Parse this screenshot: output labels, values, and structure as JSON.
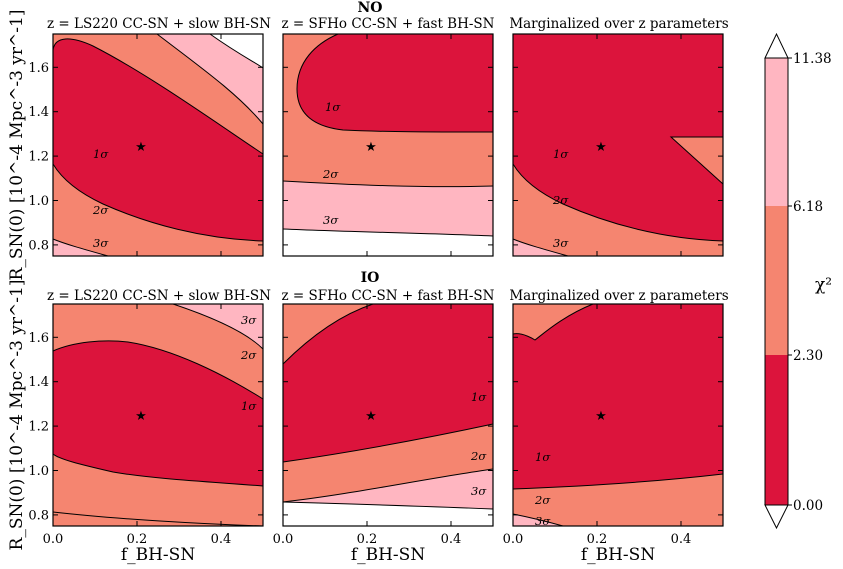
{
  "colors": {
    "one_sigma": "#dc143c",
    "two_sigma": "#f58570",
    "three_sigma": "#ffb6c1",
    "outside": "#ffffff"
  },
  "rows": [
    {
      "title": "NO"
    },
    {
      "title": "IO"
    }
  ],
  "panel_titles": [
    "z = LS220 CC-SN + slow BH-SN",
    "z = SFHo CC-SN + fast BH-SN",
    "Marginalized over z parameters"
  ],
  "x_axis": {
    "label": "f_BH-SN",
    "ticks": [
      "0.0",
      "0.2",
      "0.4"
    ],
    "range": [
      0,
      0.5
    ]
  },
  "y_axis": {
    "label": "R_SN(0) [10^-4 Mpc^-3 yr^-1]",
    "ticks": [
      "0.8",
      "1.0",
      "1.2",
      "1.4",
      "1.6"
    ],
    "range": [
      0.75,
      1.75
    ]
  },
  "colorbar": {
    "label": "χ²",
    "ticks": [
      "0.00",
      "2.30",
      "6.18",
      "11.38"
    ]
  },
  "contour_labels": [
    "1σ",
    "2σ",
    "3σ"
  ],
  "chart_data": {
    "type": "contour",
    "x_label": "f_BH-SN",
    "y_label": "R_SN(0) [10^-4 Mpc^-3 yr^-1]",
    "xlim": [
      0,
      0.5
    ],
    "ylim": [
      0.75,
      1.75
    ],
    "levels": [
      {
        "name": "1σ",
        "chi2_max": 2.3
      },
      {
        "name": "2σ",
        "chi2_max": 6.18
      },
      {
        "name": "3σ",
        "chi2_max": 11.38
      }
    ],
    "best_fit": {
      "f_BH-SN": 0.21,
      "R_SN(0)": 1.25
    },
    "panels": [
      {
        "row": "NO",
        "title": "z = LS220 CC-SN + slow BH-SN"
      },
      {
        "row": "NO",
        "title": "z = SFHo CC-SN + fast BH-SN"
      },
      {
        "row": "NO",
        "title": "Marginalized over z parameters"
      },
      {
        "row": "IO",
        "title": "z = LS220 CC-SN + slow BH-SN"
      },
      {
        "row": "IO",
        "title": "z = SFHo CC-SN + fast BH-SN"
      },
      {
        "row": "IO",
        "title": "Marginalized over z parameters"
      }
    ]
  }
}
